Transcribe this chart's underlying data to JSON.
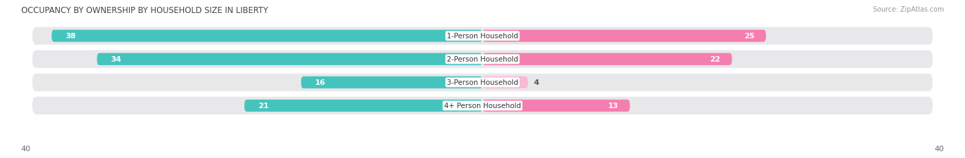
{
  "title": "OCCUPANCY BY OWNERSHIP BY HOUSEHOLD SIZE IN LIBERTY",
  "source": "Source: ZipAtlas.com",
  "categories": [
    "1-Person Household",
    "2-Person Household",
    "3-Person Household",
    "4+ Person Household"
  ],
  "owner_values": [
    38,
    34,
    16,
    21
  ],
  "renter_values": [
    25,
    22,
    4,
    13
  ],
  "owner_color": "#45C4BE",
  "renter_color": "#F47EB0",
  "renter_color_light": "#F9B8D4",
  "axis_max": 40,
  "background_color": "#ffffff",
  "row_bg_color": "#e8e8ea",
  "title_fontsize": 8.5,
  "source_fontsize": 7,
  "bar_label_fontsize": 8,
  "category_label_fontsize": 7.5,
  "axis_label_fontsize": 8,
  "legend_fontsize": 8
}
